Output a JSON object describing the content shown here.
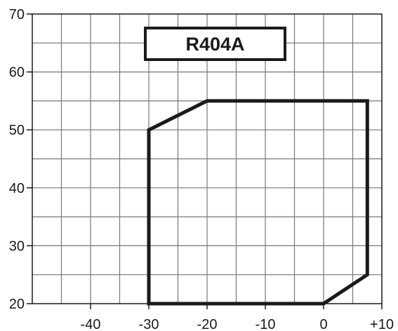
{
  "chart_data": {
    "type": "line",
    "title": "R404A",
    "xlabel": "",
    "ylabel": "",
    "xlim": [
      -50,
      10
    ],
    "ylim": [
      20,
      70
    ],
    "x_ticks": [
      -40,
      -30,
      -20,
      -10,
      0,
      10
    ],
    "x_tick_labels": [
      "-40",
      "-30",
      "-20",
      "-10",
      "0",
      "+10"
    ],
    "y_ticks": [
      20,
      30,
      40,
      50,
      60,
      70
    ],
    "y_tick_labels": [
      "20",
      "30",
      "40",
      "50",
      "60",
      "70"
    ],
    "grid": true,
    "grid_step_x": 5,
    "grid_step_y": 5,
    "series": [
      {
        "closed": true,
        "points": [
          {
            "x": -30,
            "y": 50
          },
          {
            "x": -20,
            "y": 55
          },
          {
            "x": 7.5,
            "y": 55
          },
          {
            "x": 7.5,
            "y": 25
          },
          {
            "x": 0,
            "y": 20
          },
          {
            "x": -30,
            "y": 20
          }
        ]
      }
    ],
    "colors": {
      "line": "#1a1a1a",
      "grid": "#777777",
      "axis": "#1a1a1a"
    }
  }
}
